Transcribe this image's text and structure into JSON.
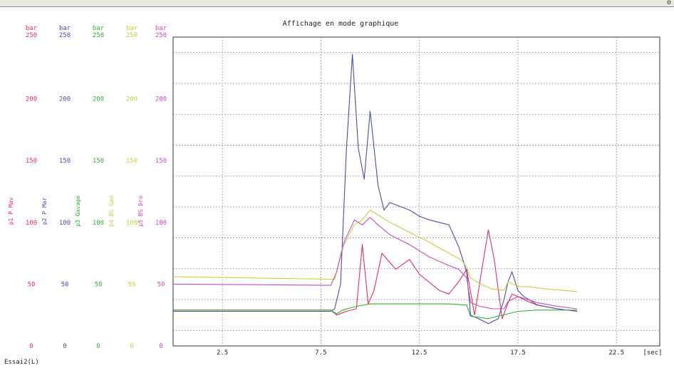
{
  "window": {
    "corner_icon": "gear-icon",
    "corner_glyph": "⚙"
  },
  "footer": {
    "label": "Essai2(L)"
  },
  "chart_data": {
    "type": "line",
    "title": "Affichage en mode graphique",
    "xlabel": "[sec]",
    "xlim": [
      0,
      24.7
    ],
    "x_ticks": [
      2.5,
      7.5,
      12.5,
      17.5,
      22.5
    ],
    "x_tick_labels": [
      "2.5",
      "7.5",
      "12.5",
      "17.5",
      "22.5"
    ],
    "ylim": [
      0,
      250
    ],
    "y_ticks": [
      0,
      50,
      100,
      150,
      200,
      250
    ],
    "grid": true,
    "axes": [
      {
        "name": "p1 P Mav",
        "unit": "bar",
        "color": "#e0305a"
      },
      {
        "name": "p2 P Mar",
        "unit": "bar",
        "color": "#4b4bb0"
      },
      {
        "name": "p3 Gavage",
        "unit": "bar",
        "color": "#33b033"
      },
      {
        "name": "p4 BS Gau",
        "unit": "bar",
        "color": "#c4d23a"
      },
      {
        "name": "p5 BS Dro",
        "unit": "bar",
        "color": "#c84cbf"
      }
    ],
    "series": [
      {
        "name": "p1 P Mav",
        "color": "#e0305a",
        "x": [
          0,
          8.0,
          8.3,
          8.8,
          9.3,
          9.6,
          9.9,
          10.2,
          10.6,
          11.3,
          12.0,
          12.5,
          13.5,
          14.0,
          14.5,
          14.9,
          15.3,
          15.6,
          16.0,
          16.3,
          16.7,
          17.0,
          17.2,
          17.5,
          18.0,
          18.5,
          19.5,
          20.5
        ],
        "y": [
          29,
          29,
          25,
          28,
          30,
          82,
          34,
          45,
          75,
          62,
          70,
          58,
          45,
          42,
          52,
          62,
          25,
          55,
          94,
          70,
          22,
          35,
          42,
          40,
          36,
          33,
          30,
          28
        ]
      },
      {
        "name": "p2 P Mar",
        "color": "#4b4bb0",
        "x": [
          0,
          8.0,
          8.2,
          8.5,
          8.8,
          9.1,
          9.4,
          9.7,
          10.0,
          10.4,
          10.7,
          11.0,
          12.0,
          12.5,
          13.0,
          14.0,
          14.5,
          14.9,
          15.1,
          15.5,
          16.0,
          16.5,
          16.8,
          17.0,
          17.2,
          17.5,
          17.8,
          18.5,
          19.5,
          20.5
        ],
        "y": [
          28,
          28,
          30,
          50,
          160,
          236,
          160,
          135,
          190,
          130,
          110,
          116,
          110,
          105,
          102,
          98,
          80,
          60,
          25,
          22,
          18,
          22,
          38,
          52,
          60,
          45,
          40,
          33,
          30,
          28
        ]
      },
      {
        "name": "p3 Gavage",
        "color": "#33b033",
        "x": [
          0,
          8.0,
          8.3,
          8.6,
          9.3,
          10.0,
          11.0,
          12.5,
          14.0,
          14.9,
          15.1,
          15.6,
          16.0,
          16.5,
          17.0,
          17.5,
          18.5,
          19.5,
          20.5
        ],
        "y": [
          29,
          29,
          26,
          29,
          32,
          34,
          34,
          34,
          34,
          33,
          24,
          23,
          22,
          24,
          26,
          28,
          29,
          29,
          29
        ]
      },
      {
        "name": "p4 BS Gau",
        "color": "#c4d23a",
        "x": [
          0,
          8.0,
          8.2,
          8.6,
          9.2,
          9.6,
          10.0,
          10.4,
          11.0,
          12.0,
          13.0,
          14.0,
          14.6,
          14.9,
          15.1,
          15.6,
          16.2,
          16.8,
          17.0,
          17.5,
          18.0,
          19.0,
          20.5
        ],
        "y": [
          56,
          54,
          54,
          80,
          98,
          102,
          110,
          106,
          100,
          92,
          84,
          75,
          70,
          64,
          55,
          50,
          46,
          45,
          52,
          48,
          48,
          46,
          44
        ]
      },
      {
        "name": "p5 BS Dro",
        "color": "#c84cbf",
        "x": [
          0,
          8.0,
          8.3,
          8.7,
          9.2,
          9.6,
          10.0,
          10.4,
          11.0,
          12.0,
          13.0,
          14.0,
          14.5,
          14.9,
          15.1,
          15.6,
          16.2,
          16.8,
          17.0,
          17.5,
          18.5,
          19.5,
          20.5
        ],
        "y": [
          50,
          49,
          60,
          85,
          102,
          98,
          104,
          98,
          90,
          82,
          72,
          65,
          62,
          55,
          35,
          32,
          30,
          30,
          36,
          40,
          35,
          32,
          30
        ]
      }
    ]
  }
}
